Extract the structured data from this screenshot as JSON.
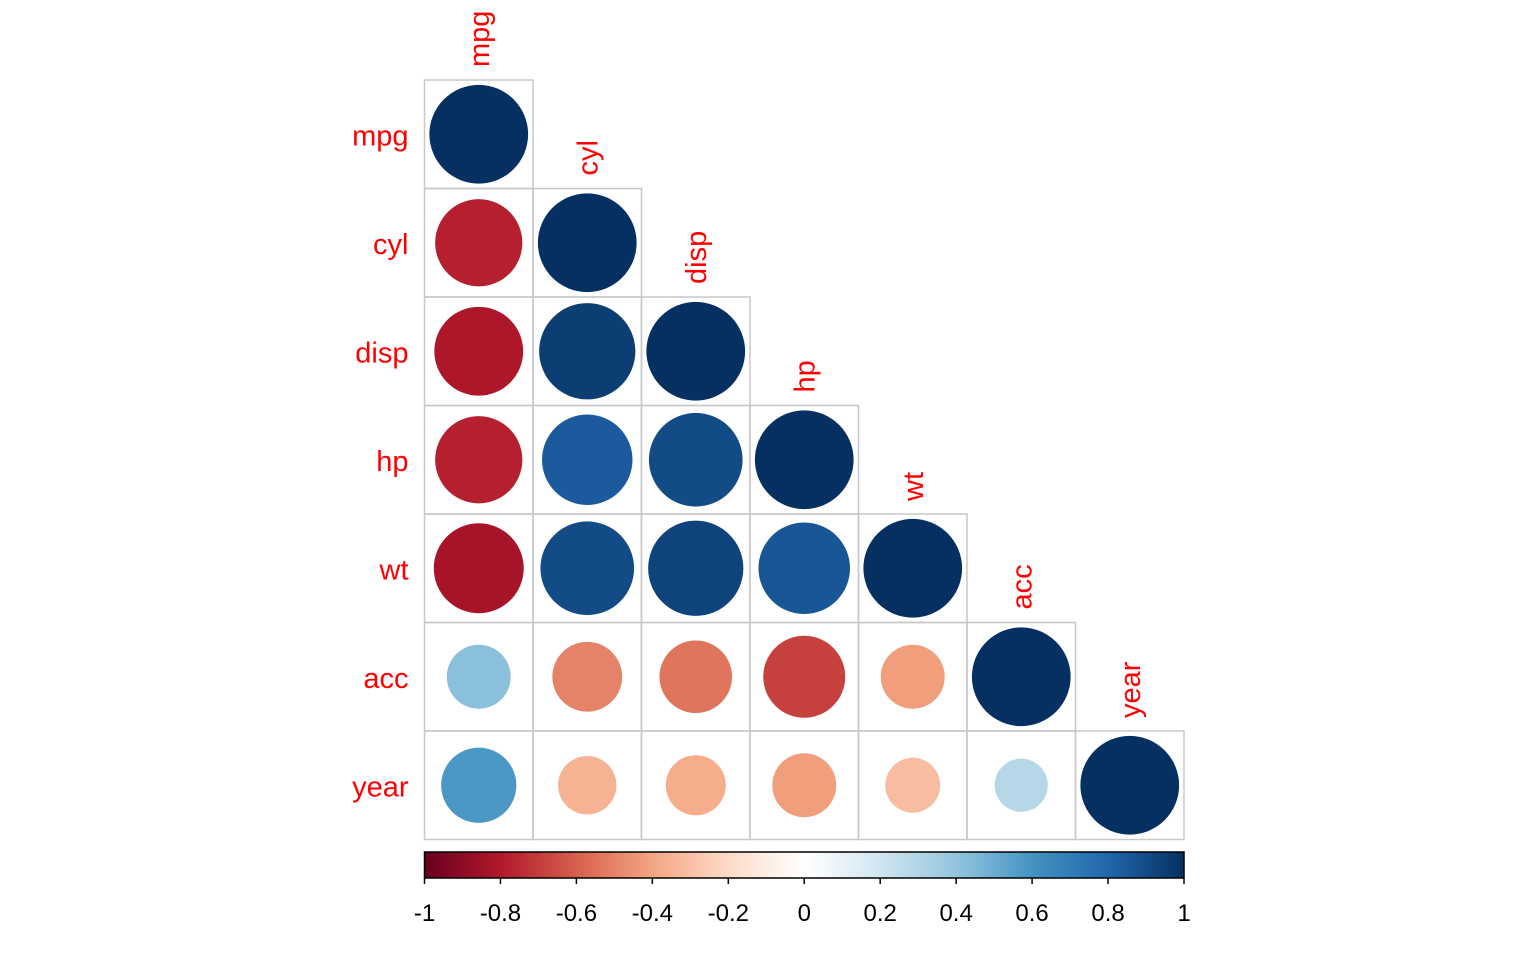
{
  "chart_data": {
    "type": "heatmap",
    "variables": [
      "mpg",
      "cyl",
      "disp",
      "hp",
      "wt",
      "acc",
      "year"
    ],
    "matrix": [
      [
        1.0,
        -0.78,
        -0.81,
        -0.78,
        -0.83,
        0.42,
        0.58
      ],
      [
        -0.78,
        1.0,
        0.95,
        0.84,
        0.9,
        -0.5,
        -0.35
      ],
      [
        -0.81,
        0.95,
        1.0,
        0.9,
        0.93,
        -0.54,
        -0.37
      ],
      [
        -0.78,
        0.84,
        0.9,
        1.0,
        0.86,
        -0.69,
        -0.42
      ],
      [
        -0.83,
        0.9,
        0.93,
        0.86,
        1.0,
        -0.42,
        -0.31
      ],
      [
        0.42,
        -0.5,
        -0.54,
        -0.69,
        -0.42,
        1.0,
        0.29
      ],
      [
        0.58,
        -0.35,
        -0.37,
        -0.42,
        -0.31,
        0.29,
        1.0
      ]
    ],
    "triangle": "lower",
    "glyph": "circle",
    "colorscale": {
      "range": [
        -1,
        1
      ],
      "stops": [
        "#67001F",
        "#B2182B",
        "#D6604D",
        "#F4A582",
        "#FDDBC7",
        "#FFFFFF",
        "#D1E5F0",
        "#92C5DE",
        "#4393C3",
        "#2166AC",
        "#053061"
      ],
      "ticks": [
        "-1",
        "-0.8",
        "-0.6",
        "-0.4",
        "-0.2",
        "0",
        "0.2",
        "0.4",
        "0.6",
        "0.8",
        "1"
      ]
    },
    "label_color": "#FF0000",
    "grid_color": "#C8C8C8"
  }
}
